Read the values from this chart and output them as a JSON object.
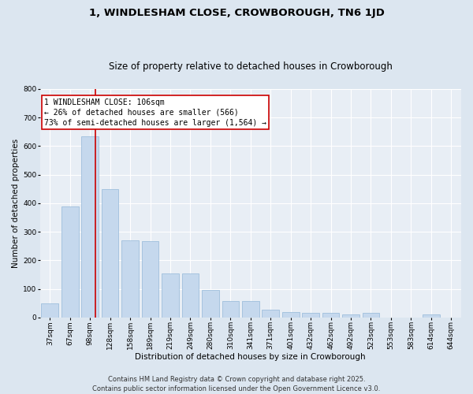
{
  "title": "1, WINDLESHAM CLOSE, CROWBOROUGH, TN6 1JD",
  "subtitle": "Size of property relative to detached houses in Crowborough",
  "xlabel": "Distribution of detached houses by size in Crowborough",
  "ylabel": "Number of detached properties",
  "categories": [
    "37sqm",
    "67sqm",
    "98sqm",
    "128sqm",
    "158sqm",
    "189sqm",
    "219sqm",
    "249sqm",
    "280sqm",
    "310sqm",
    "341sqm",
    "371sqm",
    "401sqm",
    "432sqm",
    "462sqm",
    "492sqm",
    "523sqm",
    "553sqm",
    "583sqm",
    "614sqm",
    "644sqm"
  ],
  "values": [
    50,
    390,
    635,
    450,
    270,
    268,
    155,
    155,
    97,
    58,
    58,
    27,
    20,
    15,
    15,
    10,
    15,
    0,
    0,
    10,
    0
  ],
  "bar_color": "#c5d8ed",
  "bar_edge_color": "#93b8d8",
  "vline_color": "#cc0000",
  "annotation_line1": "1 WINDLESHAM CLOSE: 106sqm",
  "annotation_line2": "← 26% of detached houses are smaller (566)",
  "annotation_line3": "73% of semi-detached houses are larger (1,564) →",
  "annotation_box_facecolor": "#ffffff",
  "annotation_box_edgecolor": "#cc0000",
  "ylim": [
    0,
    800
  ],
  "yticks": [
    0,
    100,
    200,
    300,
    400,
    500,
    600,
    700,
    800
  ],
  "bg_color": "#dce6f0",
  "plot_bg_color": "#e8eef5",
  "footer_line1": "Contains HM Land Registry data © Crown copyright and database right 2025.",
  "footer_line2": "Contains public sector information licensed under the Open Government Licence v3.0.",
  "title_fontsize": 9.5,
  "subtitle_fontsize": 8.5,
  "axis_label_fontsize": 7.5,
  "tick_fontsize": 6.5,
  "annotation_fontsize": 7,
  "footer_fontsize": 6
}
